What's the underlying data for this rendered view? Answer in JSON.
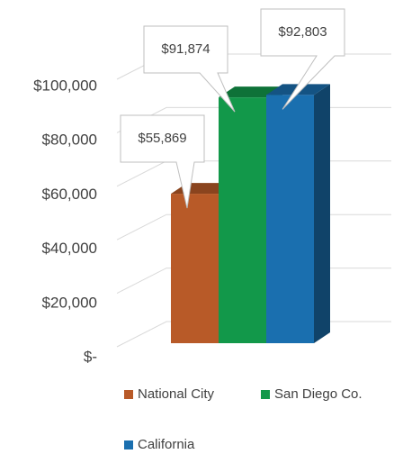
{
  "chart_data": {
    "type": "bar3d",
    "categories": [
      "National City",
      "San Diego Co.",
      "California"
    ],
    "values": [
      55869,
      91874,
      92803
    ],
    "value_labels": [
      "$55,869",
      "$91,874",
      "$92,803"
    ],
    "colors": [
      "#b85a28",
      "#12984a",
      "#1a6faf"
    ],
    "ylim": [
      0,
      100000
    ],
    "yticks": [
      {
        "value": 0,
        "label": "$-"
      },
      {
        "value": 20000,
        "label": "$20,000"
      },
      {
        "value": 40000,
        "label": "$40,000"
      },
      {
        "value": 60000,
        "label": "$60,000"
      },
      {
        "value": 80000,
        "label": "$80,000"
      },
      {
        "value": 100000,
        "label": "$100,000"
      }
    ],
    "grid": true
  }
}
